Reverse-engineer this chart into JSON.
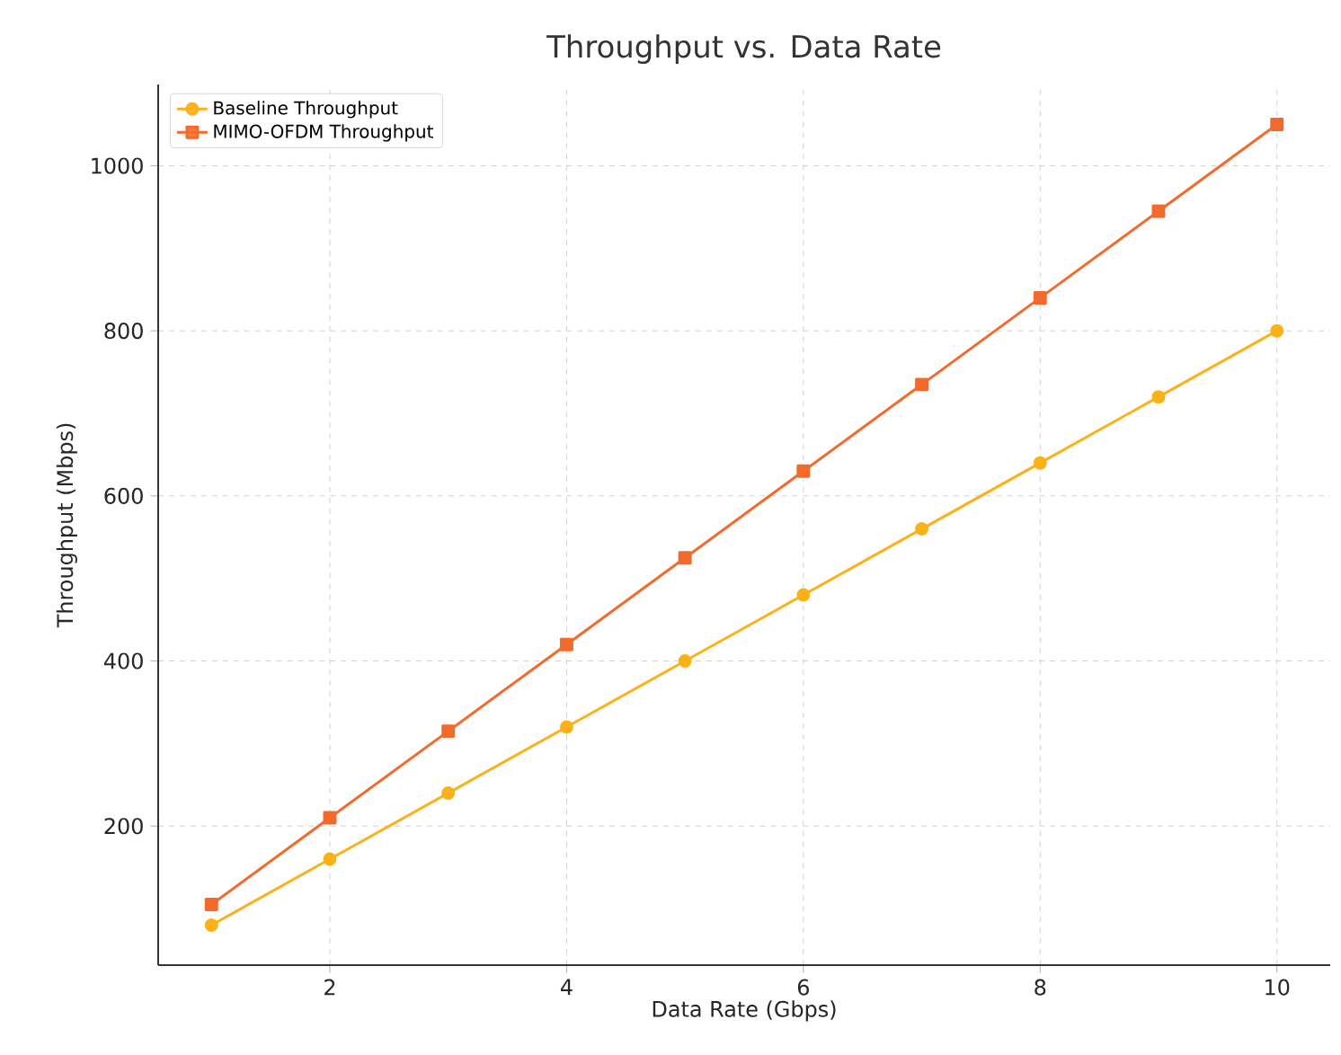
{
  "chart_data": {
    "type": "line",
    "title": "Throughput vs. Data Rate",
    "xlabel": "Data Rate (Gbps)",
    "ylabel": "Throughput (Mbps)",
    "x": [
      1,
      2,
      3,
      4,
      5,
      6,
      7,
      8,
      9,
      10
    ],
    "series": [
      {
        "name": "Baseline Throughput",
        "color": "#fbb117",
        "marker": "circle",
        "values": [
          80,
          160,
          240,
          320,
          400,
          480,
          560,
          640,
          720,
          800
        ]
      },
      {
        "name": "MIMO-OFDM Throughput",
        "color": "#f26b2c",
        "marker": "square",
        "values": [
          105,
          210,
          315,
          420,
          525,
          630,
          735,
          840,
          945,
          1050
        ]
      }
    ],
    "xlim": [
      0.55,
      10.45
    ],
    "ylim": [
      31.5,
      1098.5
    ],
    "xticks": [
      2,
      4,
      6,
      8,
      10
    ],
    "yticks": [
      200,
      400,
      600,
      800,
      1000
    ],
    "grid": true,
    "legend": "top left",
    "line_style": "solid"
  }
}
